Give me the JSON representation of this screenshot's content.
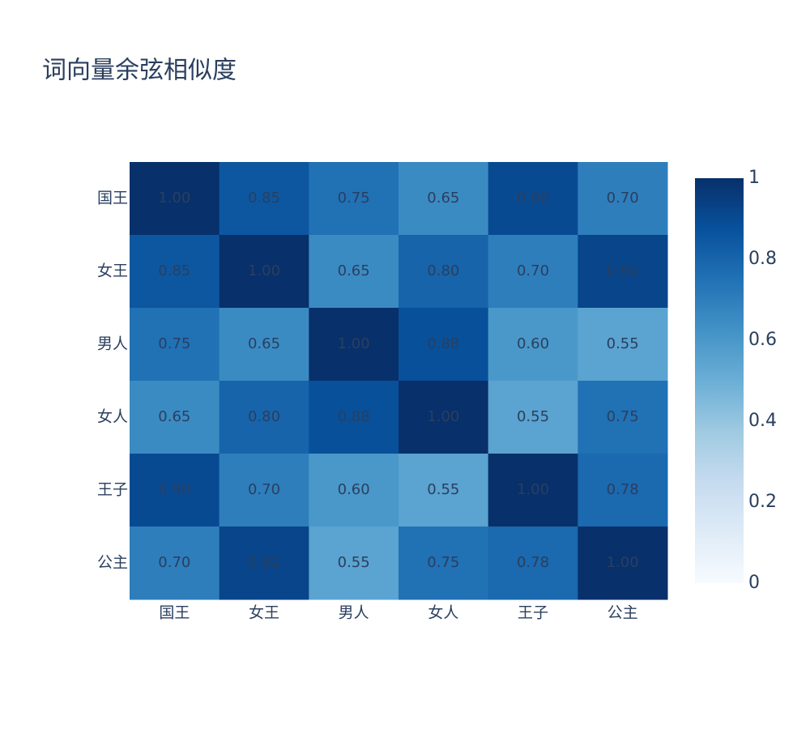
{
  "chart_data": {
    "type": "heatmap",
    "title": "词向量余弦相似度",
    "x": [
      "国王",
      "女王",
      "男人",
      "女人",
      "王子",
      "公主"
    ],
    "y": [
      "国王",
      "女王",
      "男人",
      "女人",
      "王子",
      "公主"
    ],
    "z": [
      [
        1,
        0.85,
        0.75,
        0.65,
        0.9,
        0.7
      ],
      [
        0.85,
        1,
        0.65,
        0.8,
        0.7,
        0.92
      ],
      [
        0.75,
        0.65,
        1,
        0.88,
        0.6,
        0.55
      ],
      [
        0.65,
        0.8,
        0.88,
        1,
        0.55,
        0.75
      ],
      [
        0.9,
        0.7,
        0.6,
        0.55,
        1,
        0.78
      ],
      [
        0.7,
        0.92,
        0.55,
        0.75,
        0.78,
        1
      ]
    ],
    "value_labels": [
      [
        "1.00",
        "0.85",
        "0.75",
        "0.65",
        "0.90",
        "0.70"
      ],
      [
        "0.85",
        "1.00",
        "0.65",
        "0.80",
        "0.70",
        "0.92"
      ],
      [
        "0.75",
        "0.65",
        "1.00",
        "0.88",
        "0.60",
        "0.55"
      ],
      [
        "0.65",
        "0.80",
        "0.88",
        "1.00",
        "0.55",
        "0.75"
      ],
      [
        "0.90",
        "0.70",
        "0.60",
        "0.55",
        "1.00",
        "0.78"
      ],
      [
        "0.70",
        "0.92",
        "0.55",
        "0.75",
        "0.78",
        "1.00"
      ]
    ],
    "zlim": [
      0,
      1
    ],
    "zticks": [
      0,
      0.2,
      0.4,
      0.6,
      0.8,
      1
    ],
    "colorscale": [
      [
        0,
        "#f7fbff"
      ],
      [
        0.125,
        "#deebf7"
      ],
      [
        0.25,
        "#c6dbef"
      ],
      [
        0.375,
        "#9ecae1"
      ],
      [
        0.5,
        "#6baed6"
      ],
      [
        0.625,
        "#4292c6"
      ],
      [
        0.75,
        "#2171b5"
      ],
      [
        0.875,
        "#08519c"
      ],
      [
        1,
        "#08306b"
      ]
    ]
  }
}
